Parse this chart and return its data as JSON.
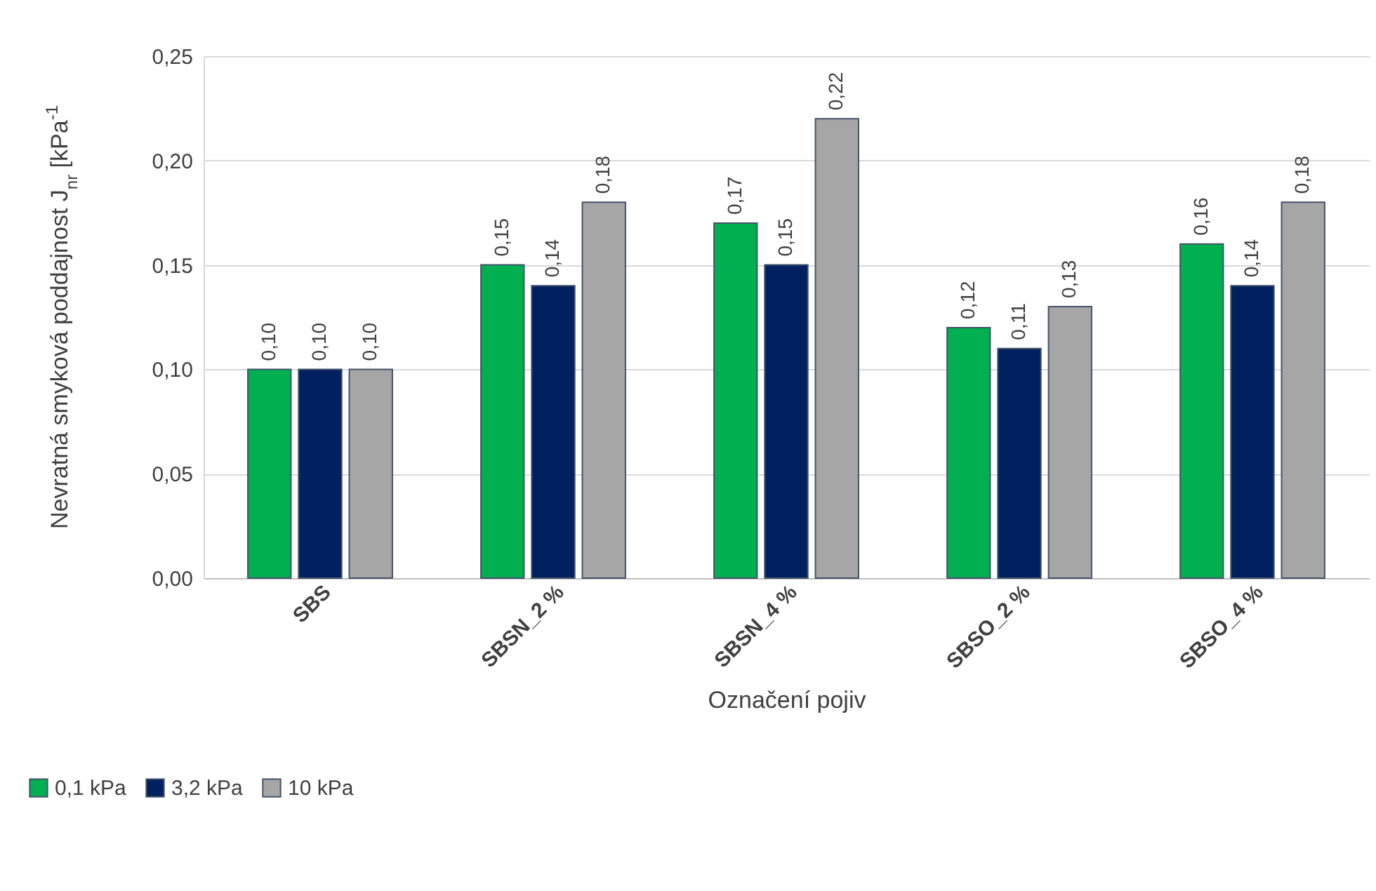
{
  "chart_data": {
    "type": "bar",
    "xlabel": "Označení pojiv",
    "ylabel": "Nevratná smyková poddajnost J$_{nr}$ [kPa$^{-1}$",
    "categories": [
      "SBS",
      "SBSN_2 %",
      "SBSN_4 %",
      "SBSO_2 %",
      "SBSO_4 %"
    ],
    "series": [
      {
        "name": "0,1 kPa",
        "color": "#00b050",
        "values": [
          0.1,
          0.15,
          0.17,
          0.12,
          0.16
        ],
        "value_labels": [
          "0,10",
          "0,15",
          "0,17",
          "0,12",
          "0,16"
        ]
      },
      {
        "name": "3,2 kPa",
        "color": "#002060",
        "values": [
          0.1,
          0.14,
          0.15,
          0.11,
          0.14
        ],
        "value_labels": [
          "0,10",
          "0,14",
          "0,15",
          "0,11",
          "0,14"
        ]
      },
      {
        "name": "10 kPa",
        "color": "#a6a6a6",
        "values": [
          0.1,
          0.18,
          0.22,
          0.13,
          0.18
        ],
        "value_labels": [
          "0,10",
          "0,18",
          "0,22",
          "0,13",
          "0,18"
        ]
      }
    ],
    "ylim": [
      0,
      0.25
    ],
    "yticks": [
      {
        "value": 0,
        "label": "0,00"
      },
      {
        "value": 0.05,
        "label": "0,05"
      },
      {
        "value": 0.1,
        "label": "0,10"
      },
      {
        "value": 0.15,
        "label": "0,15"
      },
      {
        "value": 0.2,
        "label": "0,20"
      },
      {
        "value": 0.25,
        "label": "0,25"
      }
    ],
    "grid": "y",
    "legend": "bottom left"
  }
}
